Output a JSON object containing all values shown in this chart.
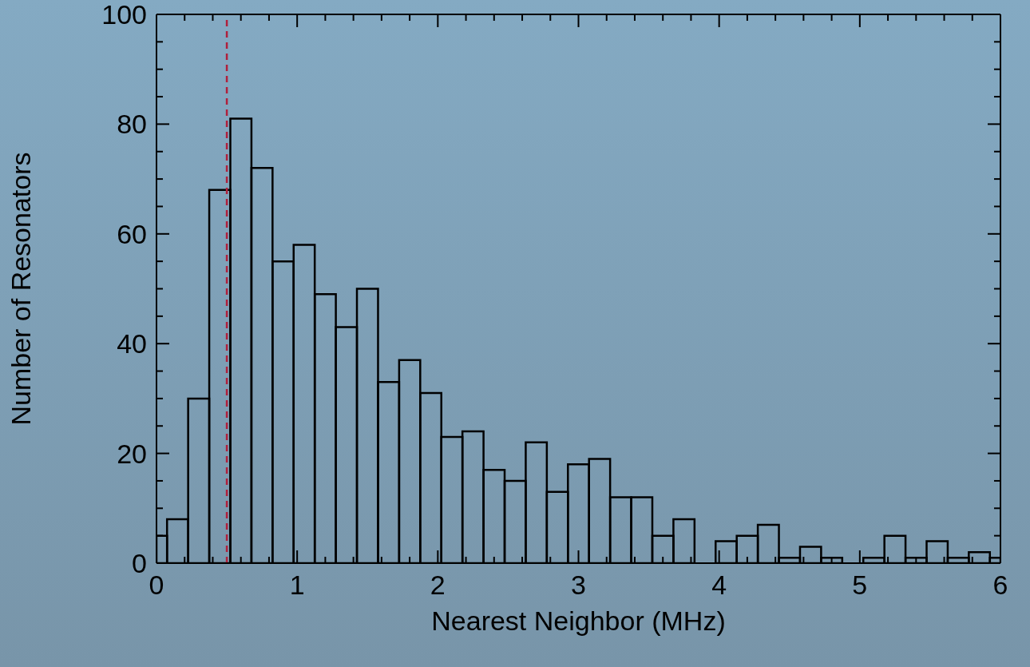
{
  "chart_data": {
    "type": "histogram",
    "xlabel": "Nearest Neighbor (MHz)",
    "ylabel": "Number of Resonators",
    "bins": [
      0,
      0.075,
      0.225,
      0.375,
      0.525,
      0.675,
      0.825,
      0.975,
      1.125,
      1.275,
      1.425,
      1.575,
      1.725,
      1.875,
      2.025,
      2.175,
      2.325,
      2.475,
      2.625,
      2.775,
      2.925,
      3.075,
      3.225,
      3.375,
      3.525,
      3.675,
      3.825,
      3.975,
      4.125,
      4.275,
      4.425,
      4.575,
      4.725,
      4.875,
      5.025,
      5.175,
      5.325,
      5.475,
      5.625,
      5.775,
      5.925,
      6
    ],
    "values": [
      5,
      8,
      30,
      68,
      81,
      72,
      55,
      58,
      49,
      43,
      50,
      33,
      37,
      31,
      23,
      24,
      17,
      15,
      22,
      13,
      18,
      19,
      12,
      12,
      5,
      8,
      0,
      4,
      5,
      7,
      1,
      3,
      1,
      0,
      1,
      5,
      1,
      4,
      1,
      2,
      1
    ],
    "color": "#000000",
    "xlim": [
      0,
      6
    ],
    "ylim": [
      0,
      100
    ],
    "xticks": [
      0,
      {
        "value": 0.2,
        "label": null
      },
      {
        "value": 0.4,
        "label": null
      },
      {
        "value": 0.6,
        "label": null
      },
      {
        "value": 0.8,
        "label": null
      },
      1,
      {
        "value": 1.2,
        "label": null
      },
      {
        "value": 1.4,
        "label": null
      },
      {
        "value": 1.6,
        "label": null
      },
      {
        "value": 1.8,
        "label": null
      },
      2,
      {
        "value": 2.2,
        "label": null
      },
      {
        "value": 2.4,
        "label": null
      },
      {
        "value": 2.6,
        "label": null
      },
      {
        "value": 2.8,
        "label": null
      },
      3,
      {
        "value": 3.2,
        "label": null
      },
      {
        "value": 3.4,
        "label": null
      },
      {
        "value": 3.6,
        "label": null
      },
      {
        "value": 3.8,
        "label": null
      },
      4,
      {
        "value": 4.2,
        "label": null
      },
      {
        "value": 4.4,
        "label": null
      },
      {
        "value": 4.6,
        "label": null
      },
      {
        "value": 4.8,
        "label": null
      },
      5,
      {
        "value": 5.2,
        "label": null
      },
      {
        "value": 5.4,
        "label": null
      },
      {
        "value": 5.6,
        "label": null
      },
      {
        "value": 5.8,
        "label": null
      },
      6
    ],
    "yticks": [
      0,
      {
        "value": 5,
        "label": null
      },
      {
        "value": 10,
        "label": null
      },
      {
        "value": 15,
        "label": null
      },
      20,
      {
        "value": 25,
        "label": null
      },
      {
        "value": 30,
        "label": null
      },
      {
        "value": 35,
        "label": null
      },
      40,
      {
        "value": 45,
        "label": null
      },
      {
        "value": 50,
        "label": null
      },
      {
        "value": 55,
        "label": null
      },
      60,
      {
        "value": 65,
        "label": null
      },
      {
        "value": 70,
        "label": null
      },
      {
        "value": 75,
        "label": null
      },
      80,
      {
        "value": 85,
        "label": null
      },
      {
        "value": 90,
        "label": null
      },
      {
        "value": 95,
        "label": null
      },
      100
    ],
    "ref_lines": [
      {
        "axis": "x",
        "value": 0.5,
        "color": "#b0203c",
        "line_style": "dashed"
      }
    ]
  }
}
